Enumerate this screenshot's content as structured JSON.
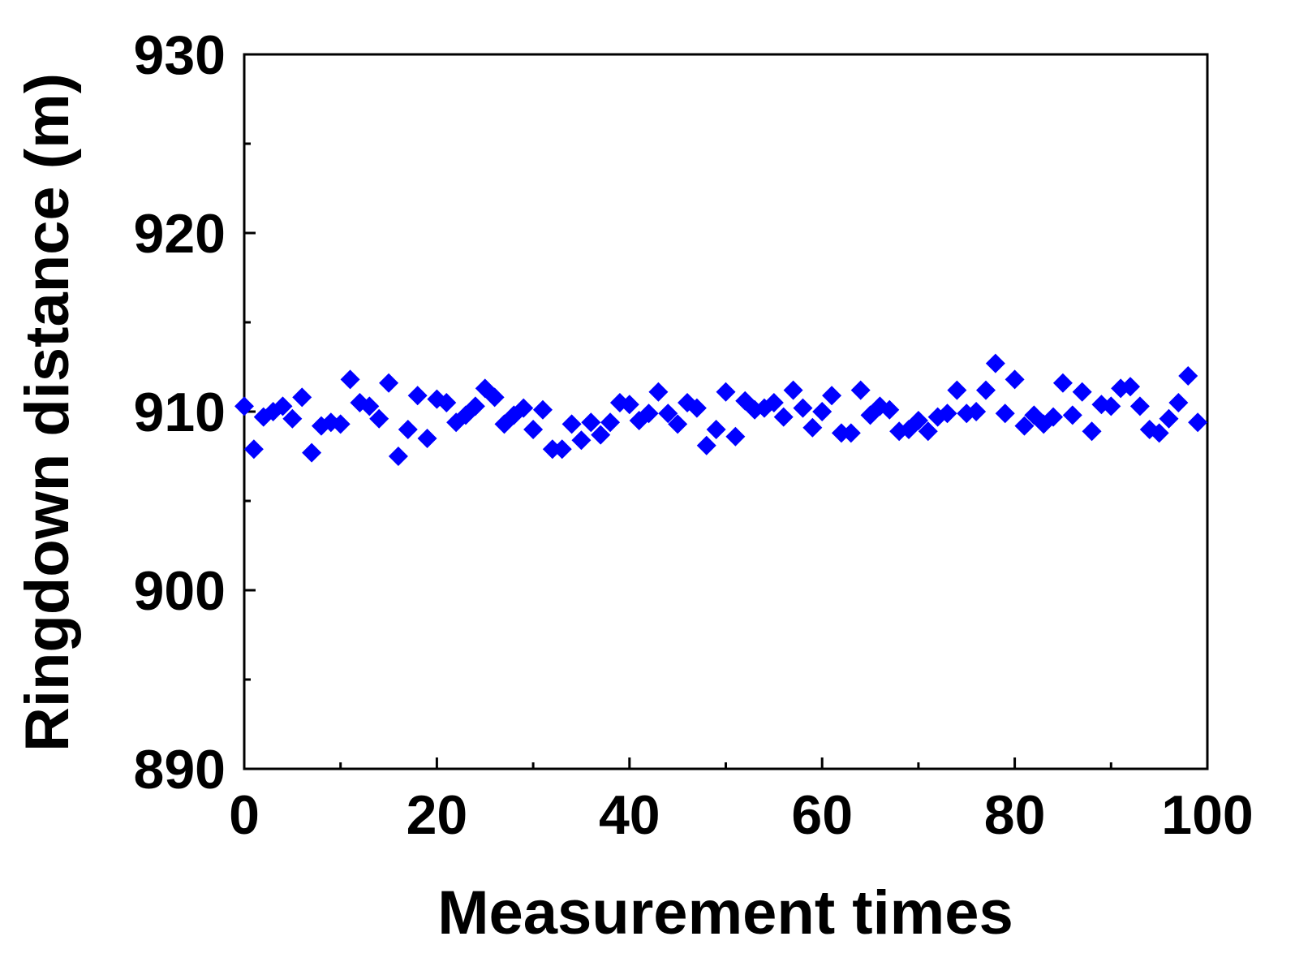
{
  "chart_data": {
    "type": "scatter",
    "xlabel": "Measurement times",
    "ylabel": "Ringdown distance (m)",
    "xlim": [
      0,
      100
    ],
    "ylim": [
      890,
      930
    ],
    "xticks": [
      0,
      20,
      40,
      60,
      80,
      100
    ],
    "yticks": [
      890,
      900,
      910,
      920,
      930
    ],
    "x_minor_step": 10,
    "y_minor_step": 5,
    "grid": false,
    "legend": "none",
    "marker": "diamond",
    "color": "#0000ff",
    "series": [
      {
        "x": [
          0,
          1,
          2,
          3,
          4,
          5,
          6,
          7,
          8,
          9,
          10,
          11,
          12,
          13,
          14,
          15,
          16,
          17,
          18,
          19,
          20,
          21,
          22,
          23,
          24,
          25,
          26,
          27,
          28,
          29,
          30,
          31,
          32,
          33,
          34,
          35,
          36,
          37,
          38,
          39,
          40,
          41,
          42,
          43,
          44,
          45,
          46,
          47,
          48,
          49,
          50,
          51,
          52,
          53,
          54,
          55,
          56,
          57,
          58,
          59,
          60,
          61,
          62,
          63,
          64,
          65,
          66,
          67,
          68,
          69,
          70,
          71,
          72,
          73,
          74,
          75,
          76,
          77,
          78,
          79,
          80,
          81,
          82,
          83,
          84,
          85,
          86,
          87,
          88,
          89,
          90,
          91,
          92,
          93,
          94,
          95,
          96,
          97,
          98,
          99
        ],
        "y": [
          910.3,
          907.9,
          909.7,
          910.0,
          910.3,
          909.6,
          910.8,
          907.7,
          909.2,
          909.4,
          909.3,
          911.8,
          910.5,
          910.3,
          909.6,
          911.6,
          907.5,
          909.0,
          910.9,
          908.5,
          910.7,
          910.5,
          909.4,
          909.8,
          910.3,
          911.3,
          910.8,
          909.3,
          909.8,
          910.2,
          909.0,
          910.1,
          907.9,
          907.9,
          909.3,
          908.4,
          909.4,
          908.7,
          909.4,
          910.5,
          910.4,
          909.5,
          909.9,
          911.1,
          909.9,
          909.3,
          910.5,
          910.2,
          908.1,
          909.0,
          911.1,
          908.6,
          910.6,
          910.1,
          910.2,
          910.5,
          909.7,
          911.2,
          910.2,
          909.1,
          910.0,
          910.9,
          908.8,
          908.8,
          911.2,
          909.8,
          910.3,
          910.1,
          908.9,
          909.0,
          909.5,
          908.9,
          909.7,
          909.9,
          911.2,
          909.9,
          910.0,
          911.2,
          912.7,
          909.9,
          911.8,
          909.2,
          909.8,
          909.3,
          909.7,
          911.6,
          909.8,
          911.1,
          908.9,
          910.4,
          910.3,
          911.3,
          911.4,
          910.3,
          909.0,
          908.8,
          909.6,
          910.5,
          912.0,
          909.4
        ]
      }
    ]
  }
}
